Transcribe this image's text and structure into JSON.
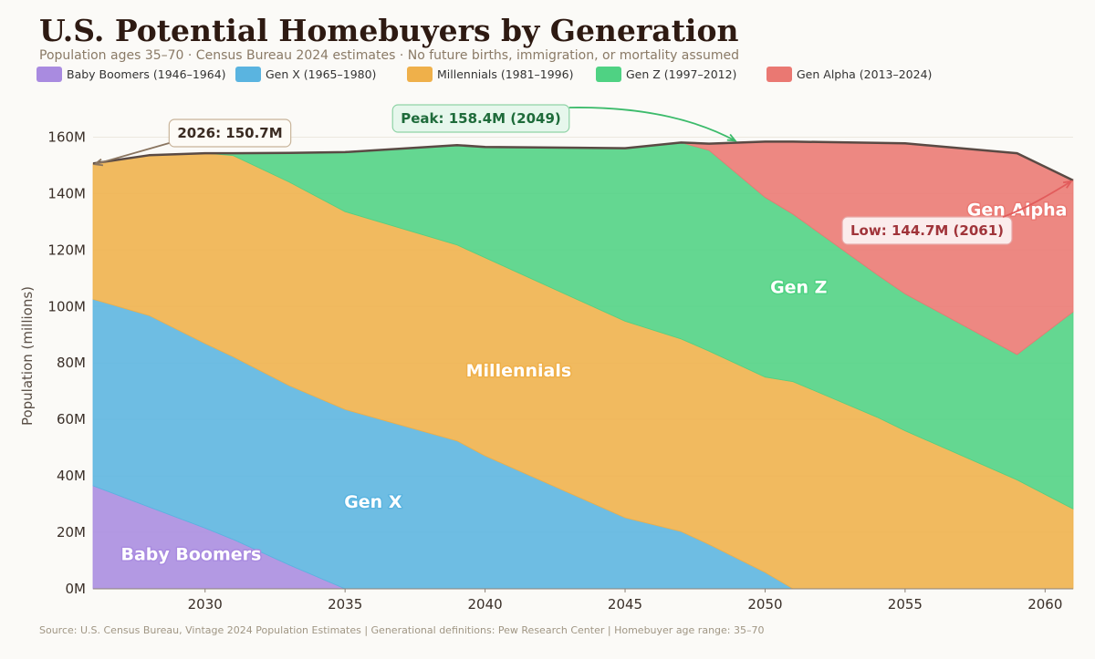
{
  "title": "U.S. Potential Homebuyers by Generation",
  "subtitle": "Population ages 35–70  ·  Census Bureau 2024 estimates  ·  No future births, immigration, or mortality assumed",
  "source": "Source: U.S. Census Bureau, Vintage 2024 Population Estimates  |  Generational definitions: Pew Research Center  |  Homebuyer age range: 35–70",
  "legend": [
    {
      "label": "Baby Boomers (1946–1964)",
      "color": "#a98be0"
    },
    {
      "label": "Gen X (1965–1980)",
      "color": "#5ab4e0"
    },
    {
      "label": "Millennials (1981–1996)",
      "color": "#efb04a"
    },
    {
      "label": "Gen Z (1997–2012)",
      "color": "#4fd283"
    },
    {
      "label": "Gen Alpha (2013–2024)",
      "color": "#ea7872"
    }
  ],
  "chart_data": {
    "type": "area",
    "stacked": true,
    "ylabel": "Population (millions)",
    "xlim": [
      2026,
      2061
    ],
    "ylim": [
      0,
      165
    ],
    "x_ticks": [
      2030,
      2035,
      2040,
      2045,
      2050,
      2055,
      2060
    ],
    "y_ticks": [
      0,
      20,
      40,
      60,
      80,
      100,
      120,
      140,
      160
    ],
    "y_tick_labels": [
      "0M",
      "20M",
      "40M",
      "60M",
      "80M",
      "100M",
      "120M",
      "140M",
      "160M"
    ],
    "grid": "horizontal",
    "x": [
      2026,
      2028,
      2030,
      2031,
      2033,
      2035,
      2039,
      2040,
      2045,
      2047,
      2048,
      2050,
      2051,
      2054,
      2055,
      2059,
      2061
    ],
    "series": [
      {
        "name": "Baby Boomers",
        "color": "#a98be0",
        "values": [
          36.5,
          29,
          21.5,
          17.5,
          8.5,
          0,
          0,
          0,
          0,
          0,
          0,
          0,
          0,
          0,
          0,
          0,
          0
        ]
      },
      {
        "name": "Gen X",
        "color": "#5ab4e0",
        "values": [
          66.1,
          67.8,
          65.4,
          64.7,
          63.5,
          63.5,
          52.4,
          47.1,
          25.2,
          20.3,
          15.7,
          5.8,
          0,
          0,
          0,
          0,
          0
        ]
      },
      {
        "name": "Millennials",
        "color": "#efb04a",
        "values": [
          48.1,
          56.8,
          67.4,
          71.3,
          72.1,
          70.1,
          69.4,
          70.2,
          69.6,
          68.2,
          68.5,
          69.2,
          73.4,
          60.8,
          56,
          38.6,
          28.3
        ]
      },
      {
        "name": "Gen Z",
        "color": "#4fd283",
        "values": [
          0,
          0,
          0,
          0.8,
          10.3,
          21.1,
          35.4,
          39.2,
          61.3,
          69.6,
          71.1,
          63.7,
          59.3,
          50.5,
          48.5,
          44.4,
          69.8
        ]
      },
      {
        "name": "Gen Alpha",
        "color": "#ea7872",
        "values": [
          0,
          0,
          0,
          0,
          0,
          0,
          0,
          0,
          0,
          0,
          2.4,
          19.7,
          25.7,
          46.7,
          53.3,
          71.3,
          46.6
        ]
      }
    ],
    "area_labels": [
      {
        "text": "Baby Boomers",
        "x": 2029.5,
        "y": 12.5,
        "color": "#a98be0"
      },
      {
        "text": "Gen X",
        "x": 2036,
        "y": 31,
        "color": "#5ab4e0"
      },
      {
        "text": "Millennials",
        "x": 2041.2,
        "y": 77.5,
        "color": "#efb04a"
      },
      {
        "text": "Gen Z",
        "x": 2051.2,
        "y": 107,
        "color": "#4fd283"
      },
      {
        "text": "Gen Alpha",
        "x": 2059,
        "y": 134.5,
        "color": "#ea7872"
      }
    ],
    "annotations": [
      {
        "text": "2026: 150.7M",
        "point_x": 2026,
        "point_y": 150.7,
        "anchor": "upper-left",
        "fill": "#fdfbf6",
        "border": "#c8b49a",
        "textColor": "#3a2b22",
        "arrow": "#8a7560"
      },
      {
        "text": "Peak: 158.4M (2049)",
        "point_x": 2049,
        "point_y": 158.4,
        "anchor": "upper-middle",
        "fill": "#e6f7ec",
        "border": "#8fd3a6",
        "textColor": "#1e6b3a",
        "arrow": "#3cbb6b"
      },
      {
        "text": "Low: 144.7M (2061)",
        "point_x": 2061,
        "point_y": 144.7,
        "anchor": "right-middle",
        "fill": "#fbecec",
        "border": "#e8a7a6",
        "textColor": "#a0343a",
        "arrow": "#e25c5c"
      }
    ]
  }
}
